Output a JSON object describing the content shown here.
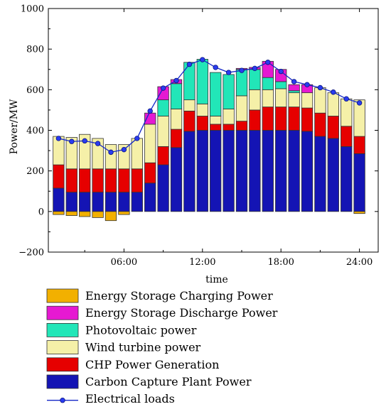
{
  "chart_data": {
    "type": "bar",
    "xlabel": "time",
    "ylabel": "Power/MW",
    "ylim": [
      -200,
      1000
    ],
    "yticks": [
      -200,
      0,
      200,
      400,
      600,
      800,
      1000
    ],
    "x_tick_labels": [
      {
        "hour": 6,
        "label": "06:00"
      },
      {
        "hour": 12,
        "label": "12:00"
      },
      {
        "hour": 18,
        "label": "18:00"
      },
      {
        "hour": 24,
        "label": "24:00"
      }
    ],
    "hours": [
      1,
      2,
      3,
      4,
      5,
      6,
      7,
      8,
      9,
      10,
      11,
      12,
      13,
      14,
      15,
      16,
      17,
      18,
      19,
      20,
      21,
      22,
      23,
      24
    ],
    "grid": false,
    "legend_position": "bottom",
    "series": [
      {
        "key": "carbon",
        "name": "Carbon Capture Plant Power",
        "color": "#1414b4",
        "values": [
          115,
          95,
          95,
          95,
          95,
          95,
          95,
          140,
          230,
          315,
          395,
          400,
          400,
          400,
          400,
          400,
          400,
          400,
          400,
          395,
          370,
          360,
          320,
          285
        ]
      },
      {
        "key": "chp",
        "name": "CHP Power Generation",
        "color": "#e60000",
        "values": [
          115,
          115,
          115,
          115,
          115,
          115,
          115,
          100,
          90,
          90,
          100,
          70,
          30,
          30,
          45,
          100,
          115,
          115,
          115,
          115,
          115,
          110,
          100,
          85
        ]
      },
      {
        "key": "wind",
        "name": "Wind turbine power",
        "color": "#f5f0a8",
        "values": [
          140,
          155,
          170,
          150,
          120,
          120,
          150,
          190,
          150,
          100,
          55,
          60,
          40,
          75,
          125,
          100,
          85,
          90,
          70,
          75,
          125,
          115,
          135,
          180
        ]
      },
      {
        "key": "pv",
        "name": "Photovoltaic power",
        "color": "#22e6b8",
        "values": [
          0,
          0,
          0,
          0,
          0,
          0,
          0,
          0,
          80,
          125,
          185,
          220,
          215,
          170,
          130,
          100,
          60,
          35,
          10,
          0,
          0,
          0,
          0,
          0
        ]
      },
      {
        "key": "discharge",
        "name": "Energy Storage Discharge Power",
        "color": "#e619d2",
        "values": [
          0,
          0,
          0,
          0,
          0,
          0,
          0,
          55,
          65,
          20,
          0,
          0,
          0,
          0,
          5,
          10,
          80,
          60,
          30,
          40,
          0,
          0,
          0,
          0
        ]
      },
      {
        "key": "charging",
        "name": "Energy Storage Charging Power",
        "color": "#f2b000",
        "values": [
          -15,
          -20,
          -25,
          -30,
          -45,
          -15,
          0,
          0,
          0,
          0,
          0,
          0,
          0,
          0,
          0,
          0,
          0,
          0,
          0,
          0,
          0,
          0,
          0,
          -10
        ]
      }
    ],
    "load_line": {
      "name": "Electrical loads",
      "color": "#1428c8",
      "values": [
        360,
        345,
        348,
        335,
        292,
        305,
        360,
        495,
        608,
        645,
        725,
        748,
        710,
        685,
        695,
        705,
        735,
        690,
        640,
        625,
        610,
        588,
        555,
        535
      ]
    },
    "legend_order": [
      "charging",
      "discharge",
      "pv",
      "wind",
      "chp",
      "carbon",
      "load"
    ]
  }
}
